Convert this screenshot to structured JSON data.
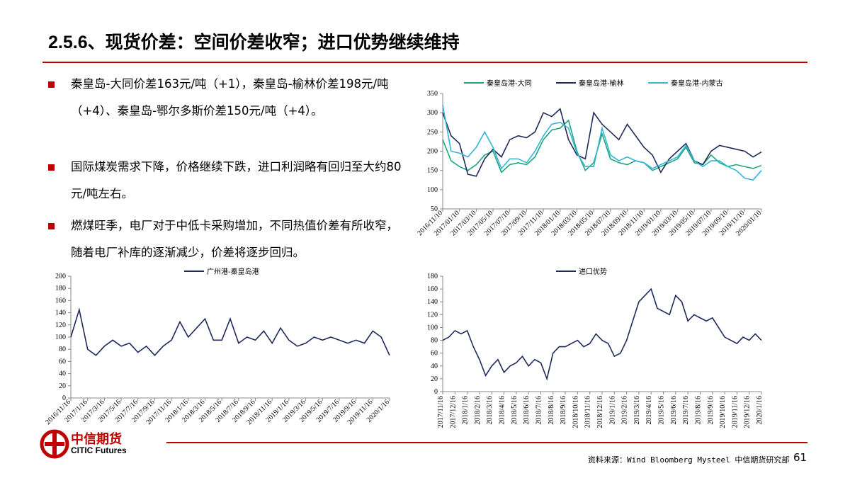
{
  "header": {
    "title": "2.5.6、现货价差：空间价差收窄；进口优势继续维持"
  },
  "bullets": [
    "秦皇岛-大同价差163元/吨（+1），秦皇岛-榆林价差198元/吨（+4）、秦皇岛-鄂尔多斯价差150元/吨（+4）。",
    "国际煤炭需求下降，价格继续下跌，进口利润略有回归至大约80元/吨左右。",
    "燃煤旺季，电厂对于中低卡采购增加，不同热值价差有所收窄，随着电厂补库的逐渐减少，价差将逐步回归。"
  ],
  "chart_data": [
    {
      "type": "line",
      "categories": [
        "2016/11/10",
        null,
        "2017/01/10",
        null,
        "2017/03/10",
        null,
        "2017/05/10",
        null,
        "2017/07/10",
        null,
        "2017/09/10",
        null,
        "2017/11/10",
        null,
        "2018/01/10",
        null,
        "2018/03/10",
        null,
        "2018/05/10",
        null,
        "2018/07/10",
        null,
        "2018/09/10",
        null,
        "2018/11/10",
        null,
        "2019/01/10",
        null,
        "2019/03/10",
        null,
        "2019/05/10",
        null,
        "2019/07/10",
        null,
        "2019/09/10",
        null,
        "2019/11/10",
        null,
        "2020/01/10"
      ],
      "series": [
        {
          "name": "秦皇岛港-大同",
          "color": "#1fa67a",
          "values": [
            230,
            175,
            160,
            150,
            165,
            190,
            200,
            145,
            165,
            170,
            165,
            185,
            230,
            255,
            260,
            280,
            200,
            150,
            170,
            245,
            180,
            170,
            165,
            175,
            170,
            150,
            160,
            170,
            180,
            210,
            170,
            165,
            190,
            170,
            160,
            165,
            160,
            155,
            163
          ]
        },
        {
          "name": "秦皇岛港-榆林",
          "color": "#1f2a5c",
          "values": [
            300,
            240,
            220,
            140,
            135,
            180,
            205,
            185,
            230,
            240,
            235,
            250,
            300,
            290,
            310,
            230,
            190,
            180,
            300,
            270,
            250,
            230,
            270,
            240,
            210,
            190,
            145,
            180,
            200,
            220,
            175,
            165,
            200,
            215,
            210,
            205,
            200,
            185,
            198
          ]
        },
        {
          "name": "秦皇岛港-内蒙古",
          "color": "#33b5d6",
          "values": [
            320,
            200,
            195,
            185,
            210,
            250,
            210,
            155,
            180,
            180,
            170,
            200,
            240,
            270,
            275,
            260,
            195,
            160,
            160,
            260,
            190,
            175,
            185,
            175,
            170,
            155,
            165,
            175,
            185,
            215,
            175,
            160,
            175,
            175,
            160,
            150,
            130,
            125,
            150
          ]
        }
      ],
      "ylim": [
        50,
        350
      ],
      "yticks": [
        50,
        100,
        150,
        200,
        250,
        300,
        350
      ]
    },
    {
      "type": "line",
      "categories": [
        "2016/11/16",
        null,
        "2017/1/16",
        null,
        "2017/3/16",
        null,
        "2017/5/16",
        null,
        "2017/7/16",
        null,
        "2017/9/16",
        null,
        "2017/11/16",
        null,
        "2018/1/16",
        null,
        "2018/3/16",
        null,
        "2018/5/16",
        null,
        "2018/7/16",
        null,
        "2018/9/16",
        null,
        "2018/11/16",
        null,
        "2019/1/16",
        null,
        "2019/3/16",
        null,
        "2019/5/16",
        null,
        "2019/7/16",
        null,
        "2019/9/16",
        null,
        "2019/11/16",
        null,
        "2020/1/16"
      ],
      "series": [
        {
          "name": "广州港-秦皇岛港",
          "color": "#1f2a5c",
          "values": [
            100,
            145,
            80,
            70,
            85,
            95,
            85,
            90,
            75,
            85,
            70,
            85,
            95,
            125,
            100,
            115,
            130,
            95,
            95,
            130,
            90,
            100,
            95,
            110,
            90,
            115,
            95,
            85,
            90,
            100,
            95,
            100,
            95,
            90,
            95,
            90,
            110,
            100,
            70
          ]
        }
      ],
      "ylim": [
        0,
        200
      ],
      "yticks": [
        0,
        20,
        40,
        60,
        80,
        100,
        120,
        140,
        160,
        180,
        200
      ]
    },
    {
      "type": "line",
      "categories": [
        "2017/11/16",
        null,
        "2017/12/16",
        null,
        "2018/1/16",
        null,
        "2018/2/16",
        null,
        "2018/3/16",
        null,
        "2018/4/16",
        null,
        "2018/5/16",
        null,
        "2018/6/16",
        null,
        "2018/7/16",
        null,
        "2018/8/16",
        null,
        "2018/9/16",
        null,
        "2018/10/16",
        null,
        "2018/11/16",
        null,
        "2018/12/16",
        null,
        "2019/1/16",
        null,
        "2019/2/16",
        null,
        "2019/3/16",
        null,
        "2019/4/16",
        null,
        "2019/5/16",
        null,
        "2019/6/16",
        null,
        "2019/7/16",
        null,
        "2019/8/16",
        null,
        "2019/9/16",
        null,
        "2019/10/16",
        null,
        "2019/11/16",
        null,
        "2019/12/16",
        null,
        "2020/1/16"
      ],
      "series": [
        {
          "name": "进口优势",
          "color": "#1f2a5c",
          "values": [
            80,
            85,
            95,
            90,
            95,
            70,
            50,
            25,
            40,
            50,
            30,
            40,
            45,
            55,
            40,
            50,
            45,
            20,
            60,
            70,
            70,
            75,
            80,
            70,
            75,
            90,
            80,
            75,
            55,
            60,
            80,
            110,
            140,
            150,
            160,
            130,
            125,
            120,
            150,
            140,
            110,
            120,
            115,
            110,
            115,
            100,
            85,
            80,
            75,
            85,
            80,
            90,
            80
          ]
        }
      ],
      "ylim": [
        0,
        180
      ],
      "yticks": [
        0,
        20,
        40,
        60,
        80,
        100,
        120,
        140,
        160,
        180
      ]
    }
  ],
  "logo": {
    "name": "中信期货",
    "english": "CITIC Futures"
  },
  "footer": {
    "source": "资料来源：Wind Bloomberg Mysteel 中信期货研究部",
    "page": "61"
  }
}
